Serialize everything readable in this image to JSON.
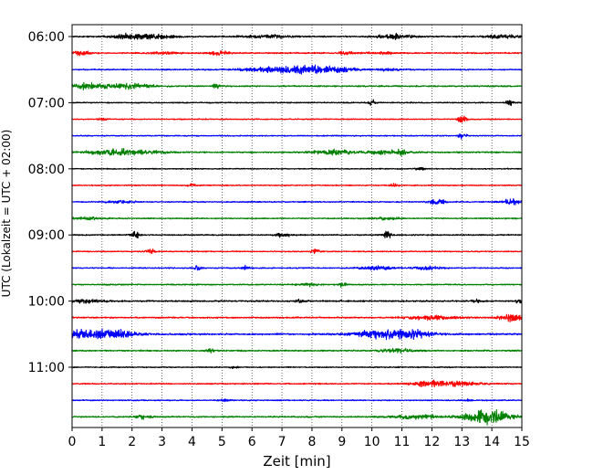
{
  "chart_data": {
    "type": "line",
    "title": "",
    "xlabel": "Zeit  [min]",
    "ylabel": "UTC (Lokalzeit = UTC + 02:00)",
    "xlim": [
      0,
      15
    ],
    "x_ticks": [
      0,
      1,
      2,
      3,
      4,
      5,
      6,
      7,
      8,
      9,
      10,
      11,
      12,
      13,
      14,
      15
    ],
    "x_tick_labels": [
      "0",
      "1",
      "2",
      "3",
      "4",
      "5",
      "6",
      "7",
      "8",
      "9",
      "10",
      "11",
      "12",
      "13",
      "14",
      "15"
    ],
    "row_minutes": 15,
    "y_ticks": [
      {
        "row": 0,
        "label": "06:00"
      },
      {
        "row": 4,
        "label": "07:00"
      },
      {
        "row": 8,
        "label": "08:00"
      },
      {
        "row": 12,
        "label": "09:00"
      },
      {
        "row": 16,
        "label": "10:00"
      },
      {
        "row": 20,
        "label": "11:00"
      }
    ],
    "grid": "vertical dotted at each minute",
    "trace_colors": [
      "#000000",
      "#ff0000",
      "#0000ff",
      "#008000"
    ],
    "traces": [
      {
        "start": "06:00",
        "noise": 0.25,
        "events": [
          [
            2.1,
            0.6,
            1.0
          ],
          [
            3.2,
            0.3,
            0.5
          ],
          [
            6.6,
            0.6,
            0.5
          ],
          [
            10.8,
            0.4,
            0.9
          ],
          [
            14.4,
            0.4,
            0.7
          ]
        ]
      },
      {
        "start": "06:15",
        "noise": 0.25,
        "events": [
          [
            0.3,
            0.2,
            0.7
          ],
          [
            3.1,
            0.3,
            0.4
          ],
          [
            4.9,
            0.2,
            0.8
          ],
          [
            9.2,
            0.2,
            0.6
          ],
          [
            10.3,
            0.3,
            0.4
          ]
        ]
      },
      {
        "start": "06:30",
        "noise": 0.22,
        "events": [
          [
            7.2,
            0.9,
            1.2
          ],
          [
            8.6,
            0.6,
            0.8
          ],
          [
            10.6,
            0.3,
            0.4
          ]
        ]
      },
      {
        "start": "06:45",
        "noise": 0.25,
        "events": [
          [
            0.5,
            0.4,
            1.0
          ],
          [
            1.9,
            0.5,
            0.9
          ],
          [
            4.8,
            0.1,
            0.7
          ]
        ]
      },
      {
        "start": "07:00",
        "noise": 0.2,
        "events": [
          [
            10.0,
            0.1,
            1.0
          ],
          [
            14.6,
            0.1,
            0.8
          ]
        ]
      },
      {
        "start": "07:15",
        "noise": 0.2,
        "events": [
          [
            1.0,
            0.1,
            0.5
          ],
          [
            13.0,
            0.1,
            1.2
          ]
        ]
      },
      {
        "start": "07:30",
        "noise": 0.2,
        "events": [
          [
            13.0,
            0.1,
            1.0
          ]
        ]
      },
      {
        "start": "07:45",
        "noise": 0.25,
        "events": [
          [
            1.7,
            0.8,
            1.0
          ],
          [
            8.7,
            0.5,
            0.8
          ],
          [
            10.5,
            0.5,
            0.6
          ],
          [
            11.0,
            0.1,
            0.7
          ]
        ]
      },
      {
        "start": "08:00",
        "noise": 0.18,
        "events": [
          [
            11.6,
            0.1,
            0.6
          ]
        ]
      },
      {
        "start": "08:15",
        "noise": 0.2,
        "events": [
          [
            4.0,
            0.1,
            0.4
          ],
          [
            10.7,
            0.1,
            0.6
          ]
        ]
      },
      {
        "start": "08:30",
        "noise": 0.2,
        "events": [
          [
            1.6,
            0.3,
            0.5
          ],
          [
            12.2,
            0.2,
            1.2
          ],
          [
            14.7,
            0.3,
            0.9
          ]
        ]
      },
      {
        "start": "08:45",
        "noise": 0.22,
        "events": [
          [
            0.5,
            0.4,
            0.4
          ],
          [
            10.5,
            0.3,
            0.4
          ]
        ]
      },
      {
        "start": "09:00",
        "noise": 0.22,
        "events": [
          [
            2.1,
            0.1,
            1.2
          ],
          [
            7.0,
            0.2,
            0.6
          ],
          [
            10.5,
            0.1,
            1.3
          ]
        ]
      },
      {
        "start": "09:15",
        "noise": 0.2,
        "events": [
          [
            2.6,
            0.1,
            0.9
          ],
          [
            8.1,
            0.1,
            0.9
          ]
        ]
      },
      {
        "start": "09:30",
        "noise": 0.2,
        "events": [
          [
            4.2,
            0.1,
            0.8
          ],
          [
            5.8,
            0.1,
            0.7
          ],
          [
            10.2,
            0.4,
            0.7
          ],
          [
            11.8,
            0.3,
            0.6
          ]
        ]
      },
      {
        "start": "09:45",
        "noise": 0.22,
        "events": [
          [
            7.9,
            0.2,
            0.5
          ],
          [
            9.0,
            0.1,
            0.7
          ]
        ]
      },
      {
        "start": "10:00",
        "noise": 0.28,
        "events": [
          [
            0.5,
            0.4,
            0.6
          ],
          [
            7.6,
            0.1,
            0.8
          ],
          [
            13.5,
            0.1,
            0.5
          ],
          [
            14.9,
            0.1,
            0.6
          ]
        ]
      },
      {
        "start": "10:15",
        "noise": 0.25,
        "events": [
          [
            12.1,
            0.6,
            0.7
          ],
          [
            14.7,
            0.3,
            1.3
          ]
        ]
      },
      {
        "start": "10:30",
        "noise": 0.3,
        "events": [
          [
            0.4,
            0.8,
            1.6
          ],
          [
            1.5,
            0.5,
            0.8
          ],
          [
            10.6,
            0.8,
            1.6
          ],
          [
            11.5,
            0.3,
            0.6
          ]
        ]
      },
      {
        "start": "10:45",
        "noise": 0.25,
        "events": [
          [
            4.6,
            0.1,
            0.6
          ],
          [
            10.8,
            0.4,
            0.7
          ]
        ]
      },
      {
        "start": "11:00",
        "noise": 0.2,
        "events": [
          [
            5.4,
            0.1,
            0.4
          ]
        ]
      },
      {
        "start": "11:15",
        "noise": 0.22,
        "events": [
          [
            11.9,
            0.4,
            0.9
          ],
          [
            12.9,
            0.6,
            0.7
          ]
        ]
      },
      {
        "start": "11:30",
        "noise": 0.2,
        "events": [
          [
            5.1,
            0.1,
            0.5
          ],
          [
            13.2,
            0.1,
            0.4
          ]
        ]
      },
      {
        "start": "11:45",
        "noise": 0.25,
        "events": [
          [
            2.4,
            0.2,
            0.6
          ],
          [
            11.5,
            0.6,
            0.6
          ],
          [
            13.9,
            0.6,
            2.4
          ]
        ]
      }
    ]
  }
}
